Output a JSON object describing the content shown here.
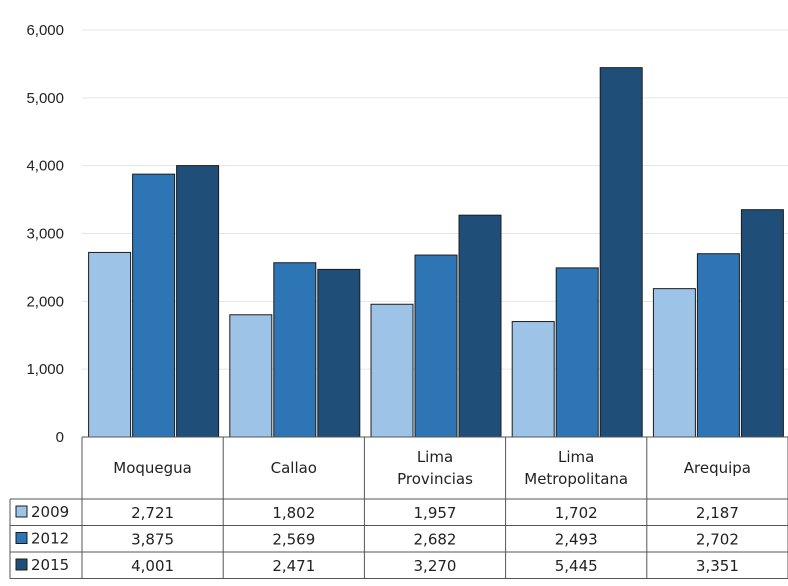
{
  "chart_data": {
    "type": "bar",
    "categories": [
      [
        "Moquegua"
      ],
      [
        "Callao"
      ],
      [
        "Lima",
        "Provincias"
      ],
      [
        "Lima",
        "Metropolitana"
      ],
      [
        "Arequipa"
      ]
    ],
    "series": [
      {
        "name": "2009",
        "color": "#9dc3e6",
        "values": [
          2721,
          1802,
          1957,
          1702,
          2187
        ],
        "labels": [
          "2,721",
          "1,802",
          "1,957",
          "1,702",
          "2,187"
        ]
      },
      {
        "name": "2012",
        "color": "#2e75b6",
        "values": [
          3875,
          2569,
          2682,
          2493,
          2702
        ],
        "labels": [
          "3,875",
          "2,569",
          "2,682",
          "2,493",
          "2,702"
        ]
      },
      {
        "name": "2015",
        "color": "#1f4e79",
        "values": [
          4001,
          2471,
          3270,
          5445,
          3351
        ],
        "labels": [
          "4,001",
          "2,471",
          "3,270",
          "5,445",
          "3,351"
        ]
      }
    ],
    "yticks": [
      "0",
      "1,000",
      "2,000",
      "3,000",
      "4,000",
      "5,000",
      "6,000"
    ],
    "ylim": [
      0,
      6000
    ],
    "grid": true,
    "legend": "data-table"
  }
}
